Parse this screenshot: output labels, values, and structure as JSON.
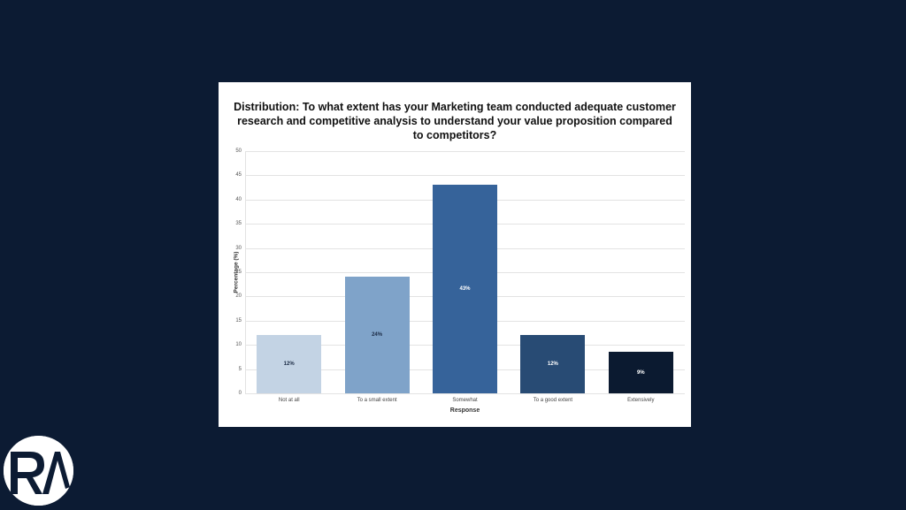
{
  "chart_data": {
    "type": "bar",
    "title": "Distribution: To what extent has your Marketing team conducted adequate customer research and competitive analysis to understand your value proposition compared to competitors?",
    "xlabel": "Response",
    "ylabel": "Percentage (%)",
    "ylim": [
      0,
      50
    ],
    "yticks": [
      0,
      5,
      10,
      15,
      20,
      25,
      30,
      35,
      40,
      45,
      50
    ],
    "grid": true,
    "legend": "none",
    "categories": [
      "Not at all",
      "To a small extent",
      "Somewhat",
      "To a good extent",
      "Extensively"
    ],
    "values": [
      12,
      24,
      43,
      12,
      8.5
    ],
    "data_labels": [
      "12%",
      "24%",
      "43%",
      "12%",
      "9%"
    ],
    "colors": [
      "#c3d3e4",
      "#7fa3c9",
      "#36639a",
      "#284b74",
      "#0b1a30"
    ],
    "label_colors": [
      "#1a2a44",
      "#1a2a44",
      "#ffffff",
      "#ffffff",
      "#ffffff"
    ]
  },
  "page": {
    "background": "#0c1b33",
    "logo_text": "RA"
  }
}
